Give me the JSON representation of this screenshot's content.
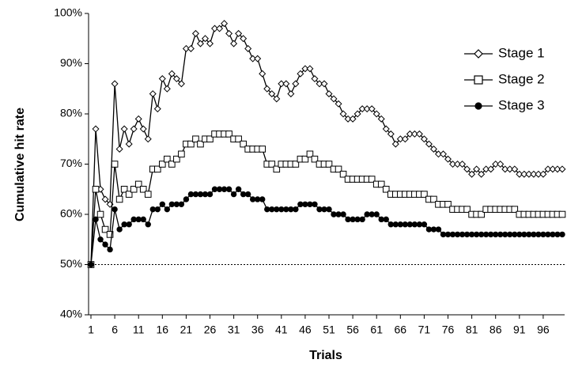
{
  "chart_data": {
    "type": "line",
    "x_label": "Trials",
    "y_label": "Cumulative hit rate",
    "x": [
      1,
      2,
      3,
      4,
      5,
      6,
      7,
      8,
      9,
      10,
      11,
      12,
      13,
      14,
      15,
      16,
      17,
      18,
      19,
      20,
      21,
      22,
      23,
      24,
      25,
      26,
      27,
      28,
      29,
      30,
      31,
      32,
      33,
      34,
      35,
      36,
      37,
      38,
      39,
      40,
      41,
      42,
      43,
      44,
      45,
      46,
      47,
      48,
      49,
      50,
      51,
      52,
      53,
      54,
      55,
      56,
      57,
      58,
      59,
      60,
      61,
      62,
      63,
      64,
      65,
      66,
      67,
      68,
      69,
      70,
      71,
      72,
      73,
      74,
      75,
      76,
      77,
      78,
      79,
      80,
      81,
      82,
      83,
      84,
      85,
      86,
      87,
      88,
      89,
      90,
      91,
      92,
      93,
      94,
      95,
      96,
      97,
      98,
      99,
      100
    ],
    "xlim": [
      0.5,
      100.5
    ],
    "xticks": [
      1,
      6,
      11,
      16,
      21,
      26,
      31,
      36,
      41,
      46,
      51,
      56,
      61,
      66,
      71,
      76,
      81,
      86,
      91,
      96
    ],
    "ylim": [
      40,
      100
    ],
    "yticks": [
      {
        "value": 40,
        "label": "40%"
      },
      {
        "value": 50,
        "label": "50%"
      },
      {
        "value": 60,
        "label": "60%"
      },
      {
        "value": 70,
        "label": "70%"
      },
      {
        "value": 80,
        "label": "80%"
      },
      {
        "value": 90,
        "label": "90%"
      },
      {
        "value": 100,
        "label": "100%"
      }
    ],
    "reference_line": 50,
    "legend": "top-right",
    "series": [
      {
        "name": "Stage 1",
        "color": "#000000",
        "marker": "diamond",
        "values": [
          50,
          77,
          65,
          63,
          62,
          86,
          73,
          77,
          74,
          77,
          79,
          77,
          75,
          84,
          81,
          87,
          85,
          88,
          87,
          86,
          93,
          93,
          96,
          94,
          95,
          94,
          97,
          97,
          98,
          96,
          94,
          96,
          95,
          93,
          91,
          91,
          88,
          85,
          84,
          83,
          86,
          86,
          84,
          86,
          88,
          89,
          89,
          87,
          86,
          86,
          84,
          83,
          82,
          80,
          79,
          79,
          80,
          81,
          81,
          81,
          80,
          79,
          77,
          76,
          74,
          75,
          75,
          76,
          76,
          76,
          75,
          74,
          73,
          72,
          72,
          71,
          70,
          70,
          70,
          69,
          68,
          69,
          68,
          69,
          69,
          70,
          70,
          69,
          69,
          69,
          68,
          68,
          68,
          68,
          68,
          68,
          69,
          69,
          69,
          69
        ]
      },
      {
        "name": "Stage 2",
        "color": "#000000",
        "marker": "square",
        "values": [
          50,
          65,
          60,
          57,
          56,
          70,
          63,
          65,
          64,
          65,
          66,
          65,
          64,
          69,
          69,
          70,
          71,
          70,
          71,
          72,
          74,
          74,
          75,
          74,
          75,
          75,
          76,
          76,
          76,
          76,
          75,
          75,
          74,
          73,
          73,
          73,
          73,
          70,
          70,
          69,
          70,
          70,
          70,
          70,
          71,
          71,
          72,
          71,
          70,
          70,
          70,
          69,
          69,
          68,
          67,
          67,
          67,
          67,
          67,
          67,
          66,
          66,
          65,
          64,
          64,
          64,
          64,
          64,
          64,
          64,
          64,
          63,
          63,
          62,
          62,
          62,
          61,
          61,
          61,
          61,
          60,
          60,
          60,
          61,
          61,
          61,
          61,
          61,
          61,
          61,
          60,
          60,
          60,
          60,
          60,
          60,
          60,
          60,
          60,
          60
        ]
      },
      {
        "name": "Stage 3",
        "color": "#000000",
        "marker": "circle",
        "values": [
          50,
          59,
          55,
          54,
          53,
          61,
          57,
          58,
          58,
          59,
          59,
          59,
          58,
          61,
          61,
          62,
          61,
          62,
          62,
          62,
          63,
          64,
          64,
          64,
          64,
          64,
          65,
          65,
          65,
          65,
          64,
          65,
          64,
          64,
          63,
          63,
          63,
          61,
          61,
          61,
          61,
          61,
          61,
          61,
          62,
          62,
          62,
          62,
          61,
          61,
          61,
          60,
          60,
          60,
          59,
          59,
          59,
          59,
          60,
          60,
          60,
          59,
          59,
          58,
          58,
          58,
          58,
          58,
          58,
          58,
          58,
          57,
          57,
          57,
          56,
          56,
          56,
          56,
          56,
          56,
          56,
          56,
          56,
          56,
          56,
          56,
          56,
          56,
          56,
          56,
          56,
          56,
          56,
          56,
          56,
          56,
          56,
          56,
          56,
          56
        ]
      }
    ]
  }
}
